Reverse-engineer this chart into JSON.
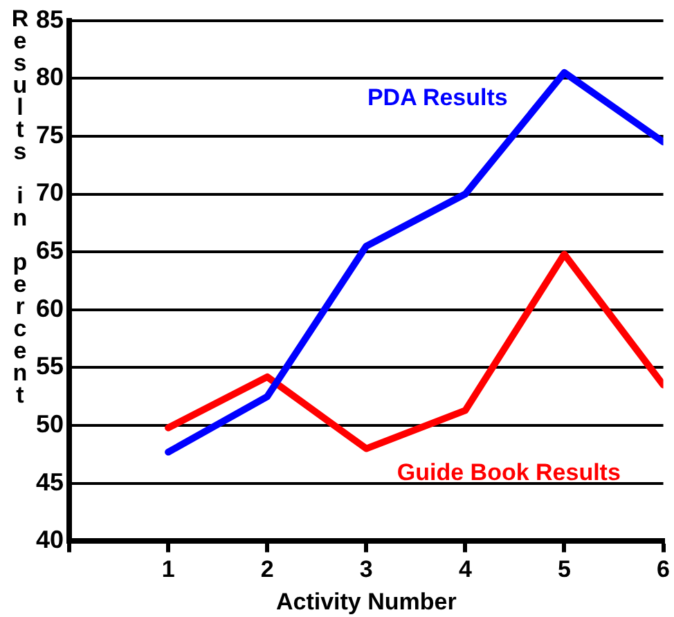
{
  "chart_data": {
    "type": "line",
    "xlabel": "Activity Number",
    "ylabel": "Results in percent",
    "x": [
      1,
      2,
      3,
      4,
      5,
      6
    ],
    "series": [
      {
        "name": "PDA Results",
        "color": "#0000ff",
        "values": [
          47.7,
          52.5,
          65.5,
          70,
          80.5,
          74.5
        ]
      },
      {
        "name": "Guide Book Results",
        "color": "#ff0000",
        "values": [
          49.8,
          54.2,
          48,
          51.3,
          64.8,
          53.5
        ]
      }
    ],
    "xlim": [
      0,
      6
    ],
    "xticks": [
      {
        "value": 0,
        "label": null
      },
      1,
      2,
      3,
      4,
      5,
      6
    ],
    "ylim": [
      40,
      85
    ],
    "yticks": [
      40,
      45,
      50,
      55,
      60,
      65,
      70,
      75,
      80,
      85
    ],
    "grid": "y",
    "legend": false,
    "marker": "none",
    "line_style": "solid"
  }
}
